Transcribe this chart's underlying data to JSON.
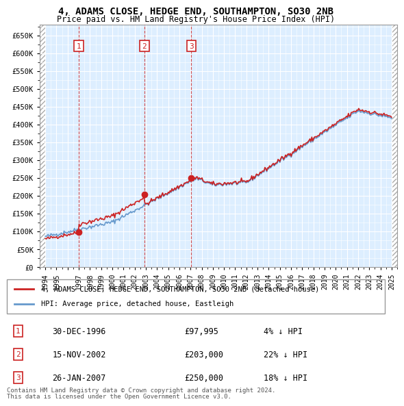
{
  "title": "4, ADAMS CLOSE, HEDGE END, SOUTHAMPTON, SO30 2NB",
  "subtitle": "Price paid vs. HM Land Registry's House Price Index (HPI)",
  "hpi_label": "HPI: Average price, detached house, Eastleigh",
  "property_label": "4, ADAMS CLOSE, HEDGE END, SOUTHAMPTON, SO30 2NB (detached house)",
  "footer_line1": "Contains HM Land Registry data © Crown copyright and database right 2024.",
  "footer_line2": "This data is licensed under the Open Government Licence v3.0.",
  "sales": [
    {
      "num": 1,
      "date": "30-DEC-1996",
      "price": 97995,
      "hpi_note": "4% ↓ HPI",
      "x": 1996.99
    },
    {
      "num": 2,
      "date": "15-NOV-2002",
      "price": 203000,
      "hpi_note": "22% ↓ HPI",
      "x": 2002.87
    },
    {
      "num": 3,
      "date": "26-JAN-2007",
      "price": 250000,
      "hpi_note": "18% ↓ HPI",
      "x": 2007.07
    }
  ],
  "ylim": [
    0,
    680000
  ],
  "xlim_start": 1993.5,
  "xlim_end": 2025.5,
  "yticks": [
    0,
    50000,
    100000,
    150000,
    200000,
    250000,
    300000,
    350000,
    400000,
    450000,
    500000,
    550000,
    600000,
    650000
  ],
  "ytick_labels": [
    "£0",
    "£50K",
    "£100K",
    "£150K",
    "£200K",
    "£250K",
    "£300K",
    "£350K",
    "£400K",
    "£450K",
    "£500K",
    "£550K",
    "£600K",
    "£650K"
  ],
  "hpi_color": "#6699cc",
  "property_color": "#cc2222",
  "background_color": "#ddeeff",
  "hatch_color": "#cccccc",
  "grid_color": "#ffffff",
  "dashed_line_color": "#cc2222",
  "sale_marker_color": "#cc2222",
  "label_box_color": "#cc2222"
}
